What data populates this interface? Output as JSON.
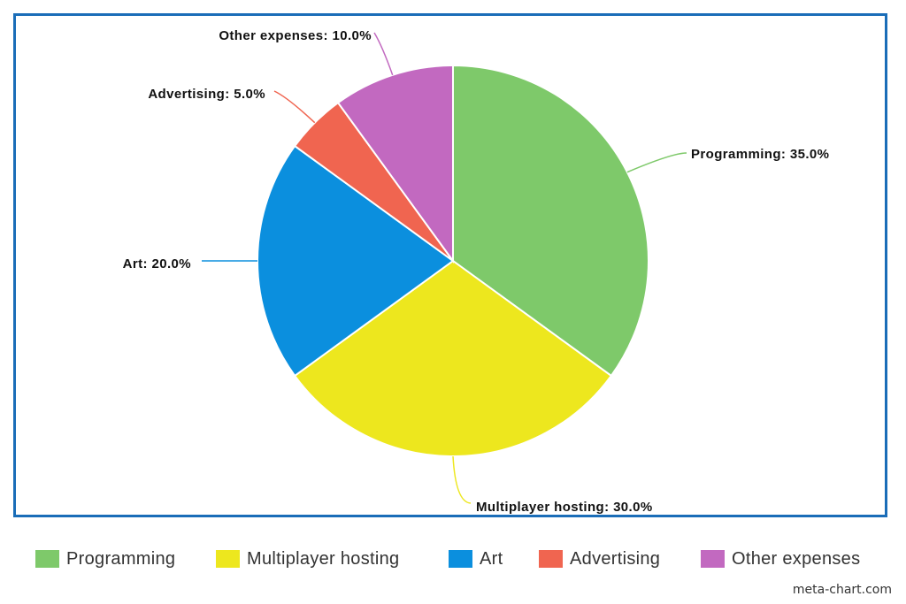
{
  "chart_data": {
    "type": "pie",
    "title": "",
    "start_angle_deg": 0,
    "direction": "clockwise",
    "slices": [
      {
        "name": "Programming",
        "value": 35.0,
        "label": "Programming: 35.0%",
        "color": "#7ec96a"
      },
      {
        "name": "Multiplayer hosting",
        "value": 30.0,
        "label": "Multiplayer hosting: 30.0%",
        "color": "#ede71e"
      },
      {
        "name": "Art",
        "value": 20.0,
        "label": "Art: 20.0%",
        "color": "#0b8fde"
      },
      {
        "name": "Advertising",
        "value": 5.0,
        "label": "Advertising: 5.0%",
        "color": "#f06550"
      },
      {
        "name": "Other expenses",
        "value": 10.0,
        "label": "Other expenses: 10.0%",
        "color": "#c269c0"
      }
    ],
    "legend_position": "bottom"
  },
  "frame_border_color": "#1a6db8",
  "credit": "meta-chart.com"
}
